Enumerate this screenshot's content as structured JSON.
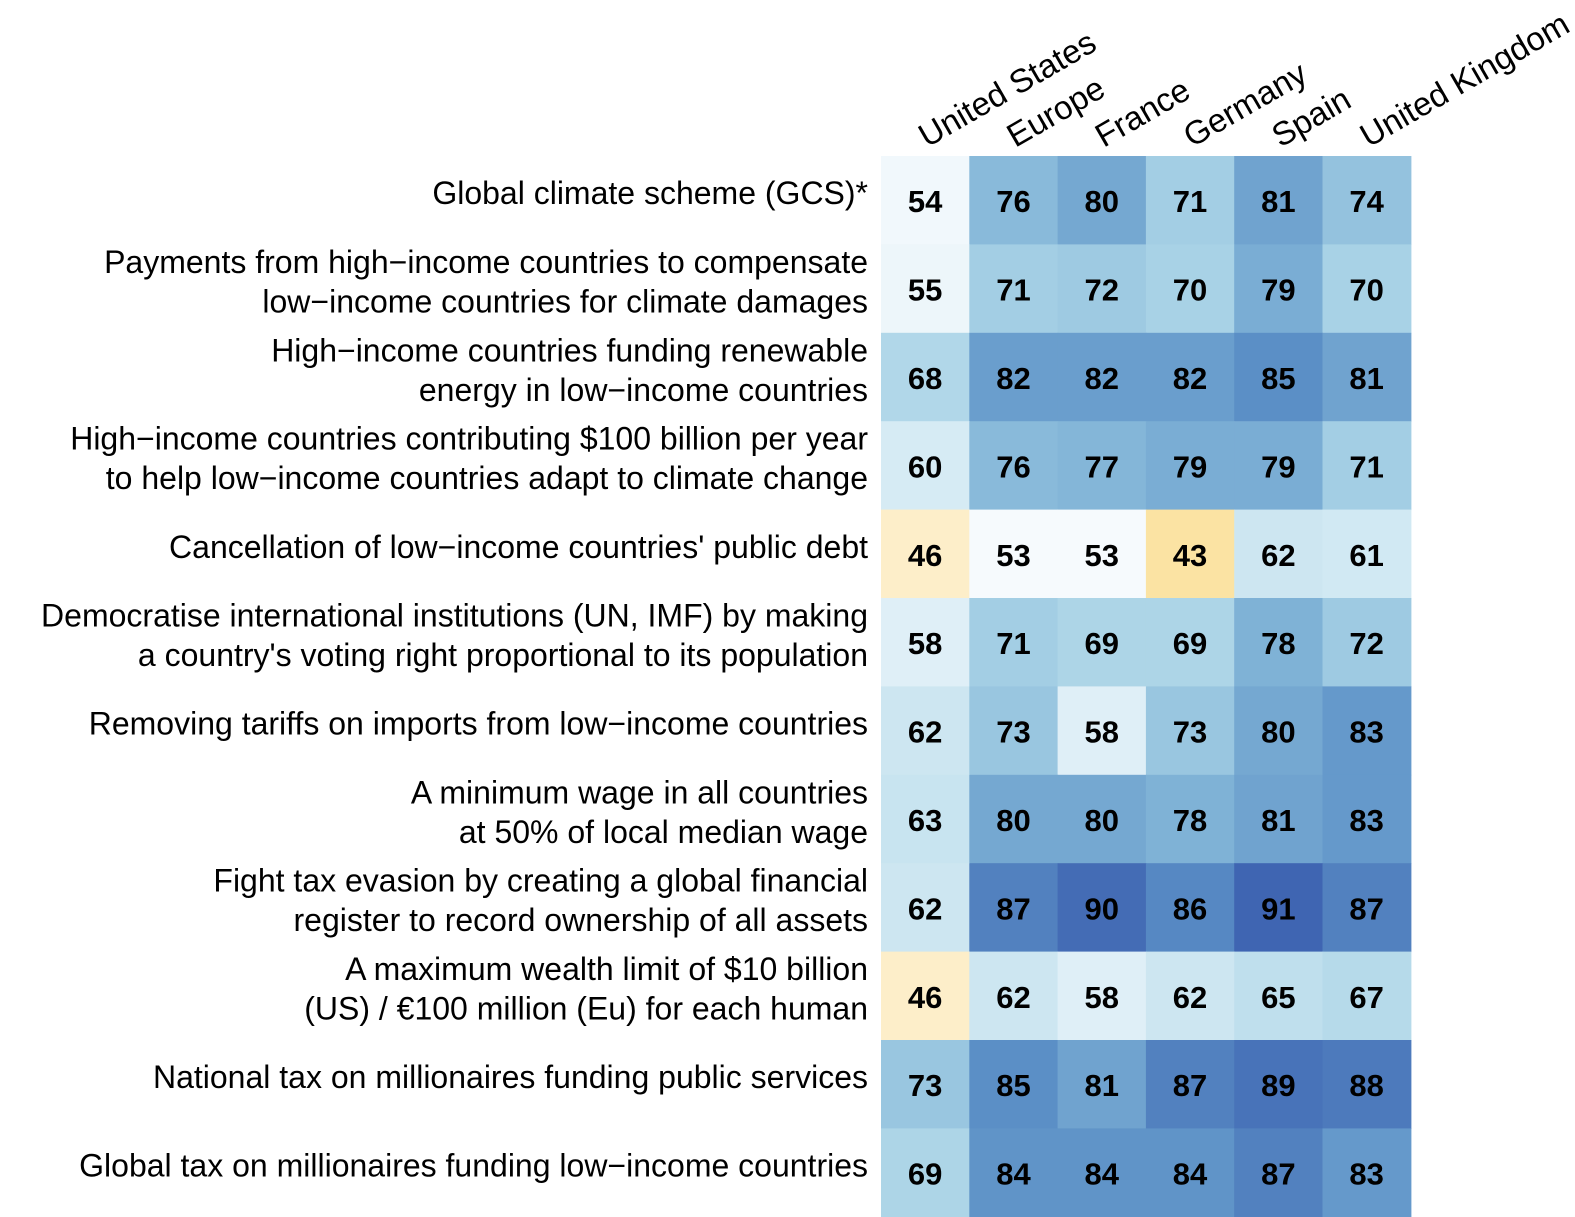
{
  "chart_data": {
    "type": "heatmap",
    "columns": [
      "United States",
      "Europe",
      "France",
      "Germany",
      "Spain",
      "United Kingdom"
    ],
    "rows": [
      {
        "label": [
          "Global climate scheme (GCS)*"
        ],
        "values": [
          54,
          76,
          80,
          71,
          81,
          74
        ]
      },
      {
        "label": [
          "Payments from high−income countries to compensate",
          "low−income countries for climate damages"
        ],
        "values": [
          55,
          71,
          72,
          70,
          79,
          70
        ]
      },
      {
        "label": [
          "High−income countries funding renewable",
          "energy in low−income countries"
        ],
        "values": [
          68,
          82,
          82,
          82,
          85,
          81
        ]
      },
      {
        "label": [
          "High−income countries contributing $100 billion per year",
          "to help low−income countries adapt to climate change"
        ],
        "values": [
          60,
          76,
          77,
          79,
          79,
          71
        ]
      },
      {
        "label": [
          "Cancellation of low−income countries' public debt"
        ],
        "values": [
          46,
          53,
          53,
          43,
          62,
          61
        ]
      },
      {
        "label": [
          "Democratise international institutions (UN, IMF) by making",
          "a country's voting right proportional to its population"
        ],
        "values": [
          58,
          71,
          69,
          69,
          78,
          72
        ]
      },
      {
        "label": [
          "Removing tariffs on imports from low−income countries"
        ],
        "values": [
          62,
          73,
          58,
          73,
          80,
          83
        ]
      },
      {
        "label": [
          "A minimum wage in all countries",
          "at 50% of local median wage"
        ],
        "values": [
          63,
          80,
          80,
          78,
          81,
          83
        ]
      },
      {
        "label": [
          "Fight tax evasion by creating a global financial",
          "register to record ownership of all assets"
        ],
        "values": [
          62,
          87,
          90,
          86,
          91,
          87
        ]
      },
      {
        "label": [
          "A maximum wealth limit of $10 billion",
          "(US) / €100 million (Eu) for each human"
        ],
        "values": [
          46,
          62,
          58,
          62,
          65,
          67
        ]
      },
      {
        "label": [
          "National tax on millionaires funding public services"
        ],
        "values": [
          73,
          85,
          81,
          87,
          89,
          88
        ]
      },
      {
        "label": [
          "Global tax on millionaires funding low−income countries"
        ],
        "values": [
          69,
          84,
          84,
          84,
          87,
          83
        ]
      }
    ],
    "color_scale": {
      "stops": [
        {
          "value": 43,
          "color": "#fbe3a3"
        },
        {
          "value": 47,
          "color": "#fdf2d6"
        },
        {
          "value": 53,
          "color": "#f6fafd"
        },
        {
          "value": 60,
          "color": "#d6ebf4"
        },
        {
          "value": 70,
          "color": "#a8d2e6"
        },
        {
          "value": 78,
          "color": "#7fb2d6"
        },
        {
          "value": 85,
          "color": "#5b8fc6"
        },
        {
          "value": 91,
          "color": "#3f65b2"
        }
      ]
    }
  }
}
